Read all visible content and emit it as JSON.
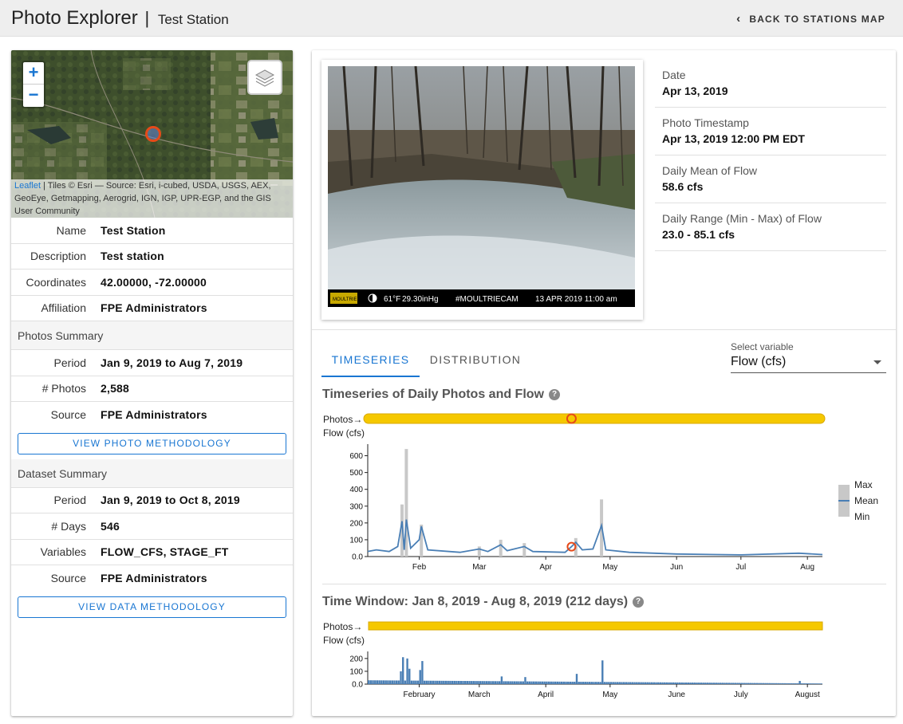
{
  "header": {
    "app_title": "Photo Explorer",
    "separator": "|",
    "station_title": "Test Station",
    "back_label": "BACK TO STATIONS MAP"
  },
  "map": {
    "zoom_in": "+",
    "zoom_out": "−",
    "attribution_link": "Leaflet",
    "attribution_text": " | Tiles © Esri — Source: Esri, i-cubed, USDA, USGS, AEX, GeoEye, Getmapping, Aerogrid, IGN, IGP, UPR-EGP, and the GIS User Community"
  },
  "station": [
    {
      "key": "Name",
      "value": "Test Station"
    },
    {
      "key": "Description",
      "value": "Test station"
    },
    {
      "key": "Coordinates",
      "value": "42.00000, -72.00000"
    },
    {
      "key": "Affiliation",
      "value": "FPE Administrators"
    }
  ],
  "photos_summary": {
    "heading": "Photos Summary",
    "rows": [
      {
        "key": "Period",
        "value": "Jan 9, 2019 to Aug 7, 2019"
      },
      {
        "key": "# Photos",
        "value": "2,588"
      },
      {
        "key": "Source",
        "value": "FPE Administrators"
      }
    ],
    "button": "VIEW PHOTO METHODOLOGY"
  },
  "dataset_summary": {
    "heading": "Dataset Summary",
    "rows": [
      {
        "key": "Period",
        "value": "Jan 9, 2019 to Oct 8, 2019"
      },
      {
        "key": "# Days",
        "value": "546"
      },
      {
        "key": "Variables",
        "value": "FLOW_CFS, STAGE_FT"
      },
      {
        "key": "Source",
        "value": "FPE Administrators"
      }
    ],
    "button": "VIEW DATA METHODOLOGY"
  },
  "photo": {
    "caption_brand": "MOULTRIE",
    "caption_temp": "61°F",
    "caption_pressure": "29.30inHg",
    "caption_tag": "#MOULTRIECAM",
    "caption_datetime": "13 APR 2019  11:00 am"
  },
  "info": [
    {
      "label": "Date",
      "value": "Apr 13, 2019"
    },
    {
      "label": "Photo Timestamp",
      "value": "Apr 13, 2019 12:00 PM EDT"
    },
    {
      "label": "Daily Mean of Flow",
      "value": "58.6 cfs"
    },
    {
      "label": "Daily Range (Min - Max) of Flow",
      "value": "23.0 - 85.1 cfs"
    }
  ],
  "tabs": [
    {
      "label": "TIMESERIES",
      "active": true
    },
    {
      "label": "DISTRIBUTION",
      "active": false
    }
  ],
  "select": {
    "label": "Select variable",
    "value": "Flow (cfs)"
  },
  "timeseries_title": "Timeseries of Daily Photos and Flow",
  "window_title": "Time Window: Jan 8, 2019 - Aug 8, 2019 (212 days)",
  "help_glyph": "?",
  "colors": {
    "photos_bar": "#f5c800",
    "series": "#4a7fb5",
    "range": "#c8c8c8",
    "marker": "#e64a19",
    "accent": "#1976d2"
  },
  "chart_data": [
    {
      "type": "bar",
      "name": "timeseries",
      "photos_label": "Photos→",
      "ylabel": "Flow (cfs)",
      "ylim": [
        0,
        650
      ],
      "yticks": [
        "0.0",
        "100",
        "200",
        "300",
        "400",
        "500",
        "600"
      ],
      "xticks": [
        "Feb",
        "Mar",
        "Apr",
        "May",
        "Jun",
        "Jul",
        "Aug"
      ],
      "legend": [
        "Max",
        "Mean",
        "Min"
      ],
      "legend_position": "right",
      "selected_date": "2019-04-13",
      "selected_mean": 58.6,
      "peaks_max": [
        {
          "date": "2019-01-24",
          "value": 310
        },
        {
          "date": "2019-01-26",
          "value": 640
        },
        {
          "date": "2019-02-02",
          "value": 190
        },
        {
          "date": "2019-03-01",
          "value": 60
        },
        {
          "date": "2019-03-11",
          "value": 100
        },
        {
          "date": "2019-03-22",
          "value": 80
        },
        {
          "date": "2019-04-15",
          "value": 110
        },
        {
          "date": "2019-04-27",
          "value": 340
        }
      ],
      "peaks_mean": [
        {
          "date": "2019-01-24",
          "value": 210
        },
        {
          "date": "2019-01-26",
          "value": 220
        },
        {
          "date": "2019-02-02",
          "value": 180
        },
        {
          "date": "2019-03-11",
          "value": 70
        },
        {
          "date": "2019-04-15",
          "value": 85
        },
        {
          "date": "2019-04-27",
          "value": 185
        }
      ]
    },
    {
      "type": "bar",
      "name": "time_window",
      "photos_label": "Photos→",
      "ylabel": "Flow (cfs)",
      "ylim": [
        0,
        230
      ],
      "yticks": [
        "0.0",
        "100",
        "200"
      ],
      "xticks": [
        "February",
        "March",
        "April",
        "May",
        "June",
        "July",
        "August"
      ]
    }
  ]
}
